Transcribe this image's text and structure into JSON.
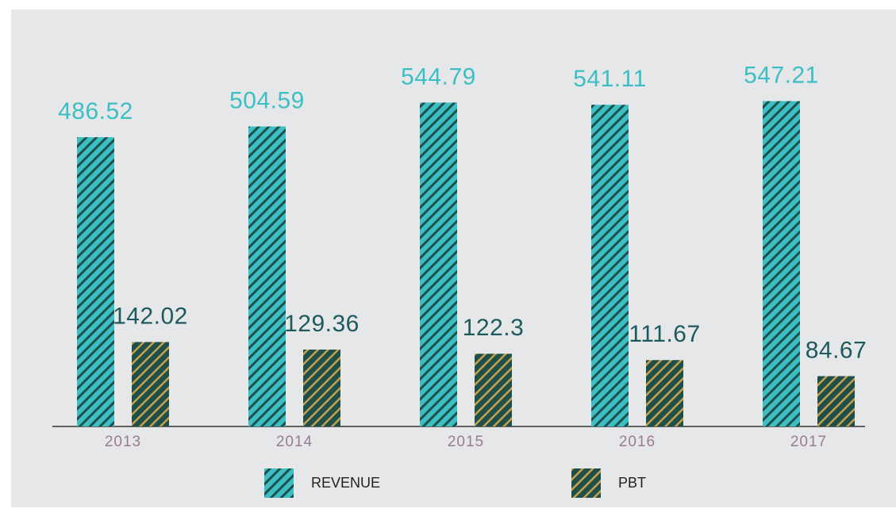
{
  "chart_data": {
    "type": "bar",
    "categories": [
      "2013",
      "2014",
      "2015",
      "2016",
      "2017"
    ],
    "series": [
      {
        "name": "REVENUE",
        "color": "#3bbfc4",
        "values": [
          486.52,
          504.59,
          544.79,
          541.11,
          547.21
        ]
      },
      {
        "name": "PBT",
        "color": "#1f4f4b",
        "values": [
          142.02,
          129.36,
          122.3,
          111.67,
          84.67
        ]
      }
    ],
    "ylim": [
      0,
      560
    ]
  }
}
